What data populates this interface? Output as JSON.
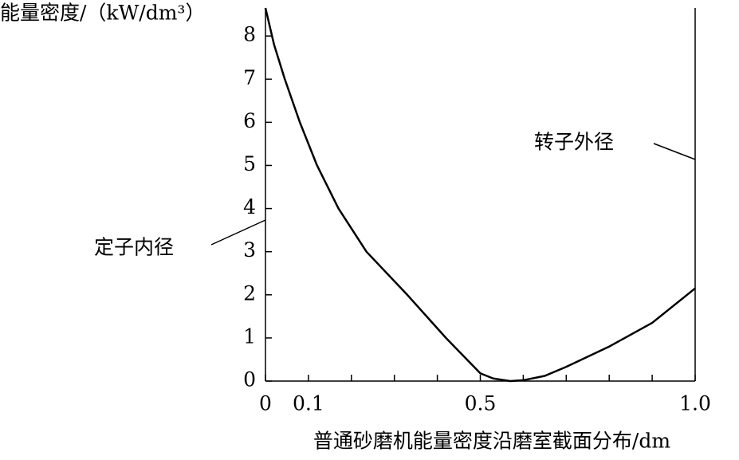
{
  "chart_data": {
    "type": "line",
    "y_label": "能量密度/（kW/dm³）",
    "x_label": "普通砂磨机能量密度沿磨室截面分布/dm",
    "annotations": [
      "定子内径",
      "转子外径"
    ],
    "x": [
      0,
      0.02,
      0.045,
      0.08,
      0.12,
      0.17,
      0.235,
      0.33,
      0.42,
      0.5,
      0.53,
      0.57,
      0.6,
      0.65,
      0.7,
      0.8,
      0.9,
      1.0
    ],
    "series": [
      {
        "color": "#000000",
        "values": [
          8.65,
          7.8,
          7,
          6,
          5,
          4,
          3,
          2,
          1,
          0.18,
          0.06,
          0,
          0.02,
          0.12,
          0.33,
          0.8,
          1.35,
          2.15
        ]
      }
    ],
    "xlim": [
      0,
      1.0
    ],
    "ylim": [
      0,
      8.65
    ],
    "xticks": [
      0,
      0.1,
      0.5,
      {
        "value": 1.0,
        "label": "1.0"
      }
    ],
    "xminorticks": [
      0.2,
      0.3,
      0.4,
      0.6,
      0.7,
      0.8,
      0.9
    ],
    "yticks": [
      0,
      1,
      2,
      3,
      4,
      5,
      6,
      7,
      8
    ]
  }
}
